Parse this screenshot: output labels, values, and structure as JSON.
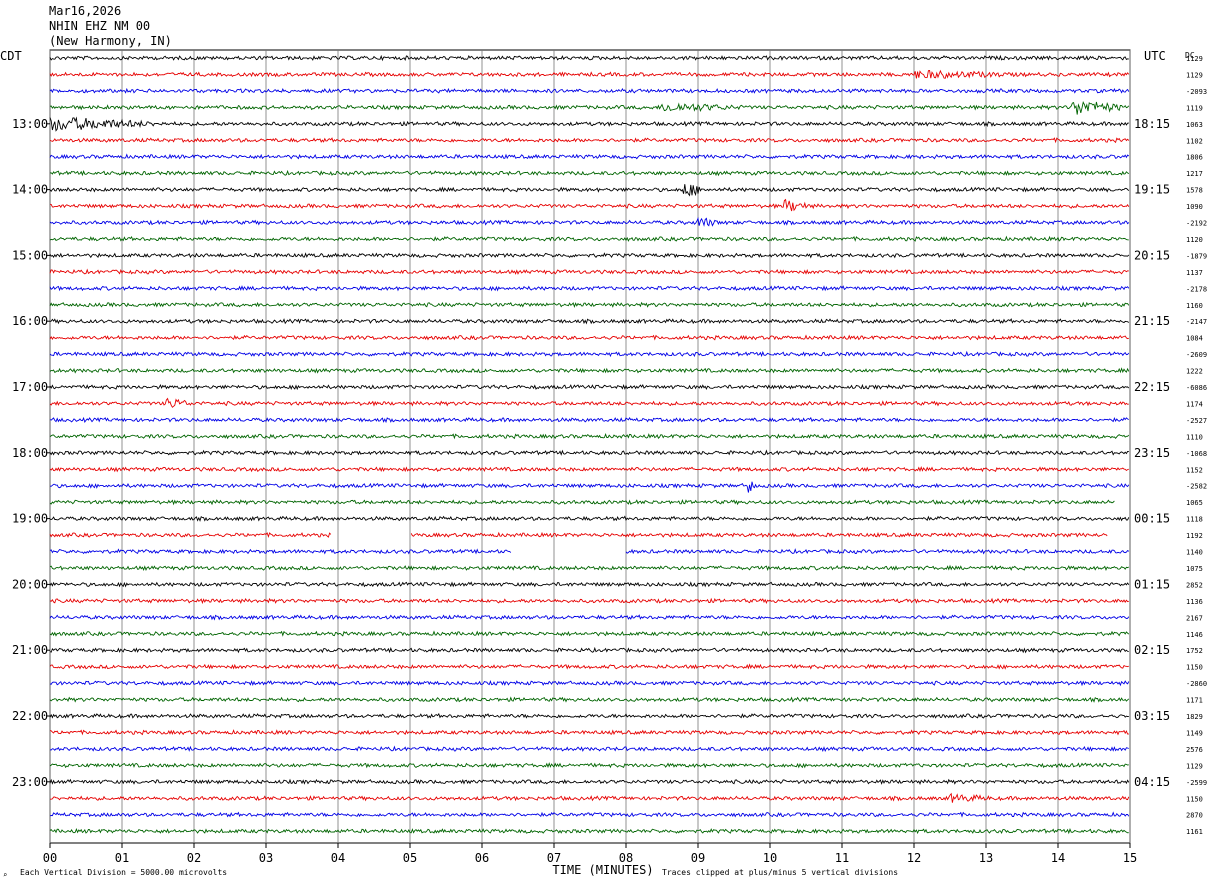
{
  "header": {
    "date": "Mar16,2026",
    "station": "NHIN EHZ NM 00",
    "location": "(New Harmony, IN)"
  },
  "chart_data": {
    "type": "line",
    "title": "",
    "left_axis_label": "CDT",
    "right_axis_label": "UTC",
    "dc_label": "DC",
    "xlabel": "TIME (MINUTES)",
    "xlim": [
      0,
      15
    ],
    "x_ticks": [
      "00",
      "01",
      "02",
      "03",
      "04",
      "05",
      "06",
      "07",
      "08",
      "09",
      "10",
      "11",
      "12",
      "13",
      "14",
      "15"
    ],
    "left_hour_labels": [
      "13:00",
      "14:00",
      "15:00",
      "16:00",
      "17:00",
      "18:00",
      "19:00",
      "20:00",
      "21:00",
      "22:00",
      "23:00"
    ],
    "right_hour_labels": [
      "18:15",
      "19:15",
      "20:15",
      "21:15",
      "22:15",
      "23:15",
      "00:15",
      "01:15",
      "02:15",
      "03:15",
      "04:15"
    ],
    "trace_colors": [
      "#000000",
      "#e60000",
      "#0000e6",
      "#006400"
    ],
    "dc_values": [
      "1129",
      "1129",
      "-2093",
      "1119",
      "1063",
      "1102",
      "1806",
      "1217",
      "1578",
      "1090",
      "-2192",
      "1120",
      "-1879",
      "1137",
      "-2178",
      "1160",
      "-2147",
      "1084",
      "-2609",
      "1222",
      "-6086",
      "1174",
      "-2527",
      "1110",
      "-1068",
      "1152",
      "-2582",
      "1065",
      "1118",
      "1192",
      "1140",
      "1075",
      "2852",
      "1136",
      "2167",
      "1146",
      "1752",
      "1150",
      "-2860",
      "1171",
      "1829",
      "1149",
      "2576",
      "1129",
      "-2599",
      "1150",
      "2870",
      "1161"
    ],
    "gaps": [
      {
        "trace": 29,
        "from_min": 3.9,
        "to_min": 5.0
      },
      {
        "trace": 29,
        "from_min": 14.7,
        "to_min": 15.0
      },
      {
        "trace": 30,
        "from_min": 6.4,
        "to_min": 8.0
      },
      {
        "trace": 27,
        "from_min": 14.8,
        "to_min": 15.0
      }
    ],
    "events": [
      {
        "trace": 4,
        "at_min": 0.0,
        "len_min": 1.6,
        "amp": 1.0
      },
      {
        "trace": 3,
        "at_min": 8.5,
        "len_min": 1.2,
        "amp": 0.6
      },
      {
        "trace": 3,
        "at_min": 14.2,
        "len_min": 0.8,
        "amp": 1.2
      },
      {
        "trace": 8,
        "at_min": 8.8,
        "len_min": 0.3,
        "amp": 1.2
      },
      {
        "trace": 9,
        "at_min": 10.2,
        "len_min": 0.4,
        "amp": 0.9
      },
      {
        "trace": 10,
        "at_min": 9.0,
        "len_min": 0.3,
        "amp": 0.8
      },
      {
        "trace": 21,
        "at_min": 1.6,
        "len_min": 0.4,
        "amp": 0.8
      },
      {
        "trace": 26,
        "at_min": 9.7,
        "len_min": 0.1,
        "amp": 1.3
      },
      {
        "trace": 1,
        "at_min": 12.0,
        "len_min": 1.5,
        "amp": 0.5
      },
      {
        "trace": 45,
        "at_min": 12.5,
        "len_min": 0.6,
        "amp": 0.5
      }
    ]
  },
  "footer": {
    "scale_note": "Each Vertical Division = 5000.00 microvolts",
    "clip_note": "Traces clipped at plus/minus 5 vertical divisions",
    "corner_mark": "⌕"
  }
}
